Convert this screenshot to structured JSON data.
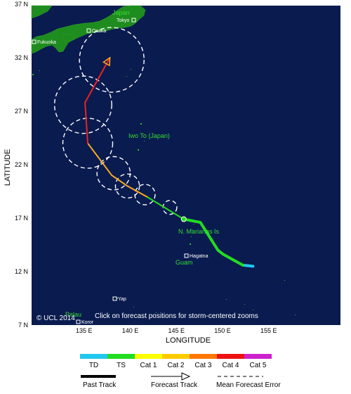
{
  "map": {
    "lat_labels": [
      "37 N",
      "32 N",
      "27 N",
      "22 N",
      "17 N",
      "12 N",
      "7 N"
    ],
    "lon_labels": [
      "135 E",
      "140 E",
      "145 E",
      "150 E",
      "155 E"
    ],
    "x_title": "LONGITUDE",
    "y_title": "LATITUDE",
    "copyright": "© UCL 2014",
    "instruction": "Click on forecast positions for storm-centered zooms"
  },
  "places": {
    "japan": "Japan",
    "tokyo": "Tokyo",
    "osaka": "Osaka",
    "fukuoka": "Fukuoka",
    "iwo_to": "Iwo To (Japan)",
    "n_marianas": "N. Marianas Is",
    "hagatna": "Hagatna",
    "guam": "Guam",
    "yap": "Yap",
    "palau": "Palau",
    "koror": "Koror"
  },
  "track": {
    "past_segments": [
      {
        "category": "TD",
        "points": [
          [
            153.3,
            12.5
          ],
          [
            152.2,
            12.6
          ]
        ]
      },
      {
        "category": "TS",
        "points": [
          [
            152.2,
            12.6
          ],
          [
            150.1,
            13.6
          ],
          [
            149.5,
            14.0
          ],
          [
            147.6,
            16.6
          ],
          [
            145.8,
            16.9
          ]
        ]
      }
    ],
    "forecast_segments": [
      {
        "category": "TS",
        "points": [
          [
            145.8,
            16.9
          ],
          [
            141.8,
            19.0
          ]
        ]
      },
      {
        "category": "Cat 1",
        "points": [
          [
            141.8,
            19.0
          ],
          [
            139.7,
            20.0
          ],
          [
            138.0,
            21.0
          ],
          [
            135.4,
            24.0
          ]
        ]
      },
      {
        "category": "Cat 4",
        "points": [
          [
            135.1,
            27.8
          ],
          [
            137.8,
            32.0
          ]
        ]
      }
    ],
    "cat1_to_cat4": [
      [
        135.4,
        24.0
      ],
      [
        135.1,
        27.8
      ]
    ],
    "current_position": [
      145.8,
      16.9
    ],
    "error_circles": [
      {
        "lon": 144.3,
        "lat": 18.0,
        "r_deg": 0.75
      },
      {
        "lon": 141.6,
        "lat": 19.2,
        "r_deg": 1.1
      },
      {
        "lon": 139.7,
        "lat": 20.0,
        "r_deg": 1.3
      },
      {
        "lon": 138.2,
        "lat": 21.2,
        "r_deg": 1.8
      },
      {
        "lon": 135.4,
        "lat": 24.0,
        "r_deg": 2.7
      },
      {
        "lon": 134.9,
        "lat": 27.6,
        "r_deg": 3.1
      },
      {
        "lon": 138.0,
        "lat": 31.8,
        "r_deg": 3.5
      }
    ]
  },
  "legend": {
    "categories": [
      {
        "label": "TD",
        "color": "#22c7ee"
      },
      {
        "label": "TS",
        "color": "#22dd22"
      },
      {
        "label": "Cat 1",
        "color": "#ffff00"
      },
      {
        "label": "Cat 2",
        "color": "#ffcc00"
      },
      {
        "label": "Cat 3",
        "color": "#ff7700"
      },
      {
        "label": "Cat 4",
        "color": "#ee1111"
      },
      {
        "label": "Cat 5",
        "color": "#cc22cc"
      }
    ],
    "past_track": "Past Track",
    "forecast_track": "Forecast Track",
    "mean_error": "Mean Forecast Error"
  },
  "colors": {
    "ocean": "#0a1b4f",
    "land": "#1e8c1e",
    "track_td": "#22c7ee",
    "track_ts": "#22dd22",
    "track_cat1": "#ffaa22",
    "track_cat4": "#ee2222"
  }
}
